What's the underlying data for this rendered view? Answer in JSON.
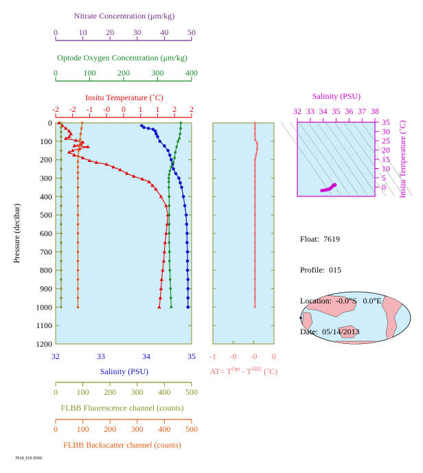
{
  "colors": {
    "panel_bg": "#cdeefa",
    "nitrate": "#7b2d8e",
    "oxygen": "#1a8a2a",
    "temperature": "#e01010",
    "salinity": "#1010c8",
    "fluorescence": "#8e8e2a",
    "backscatter": "#e0601a",
    "delta": "#f07070",
    "ts": "#cc00cc"
  },
  "info": {
    "float": "Float:  7619",
    "profile": "Profile:  015",
    "location": "Location:  -0.0°S   0.0°E",
    "date": "Date:  05/14/2013"
  },
  "footer_id": "7619_015.0000",
  "chart_data": [
    {
      "type": "line",
      "panel": "profile",
      "ylabel": "Pressure (decibar)",
      "ylim": [
        1200,
        0
      ],
      "yticks": [
        0,
        100,
        200,
        300,
        400,
        500,
        600,
        700,
        800,
        900,
        1000,
        1100,
        1200
      ],
      "axes": [
        {
          "key": "nitrate",
          "label": "Nitrate Concentration (μm/kg)",
          "lim": [
            0,
            50
          ],
          "ticks": [
            "0",
            "10",
            "20",
            "30",
            "40",
            "50"
          ],
          "position": "top-1"
        },
        {
          "key": "oxygen",
          "label": "Optode Oxygen Concentration (μm/kg)",
          "lim": [
            0,
            400
          ],
          "ticks": [
            "0",
            "100",
            "200",
            "300",
            "400"
          ],
          "position": "top-2"
        },
        {
          "key": "temperature",
          "label": "Insitu Temperature (˚C)",
          "lim": [
            -2,
            2
          ],
          "ticks": [
            "-2",
            "-2",
            "-1",
            "-0",
            "0",
            "1",
            "1",
            "2",
            "2"
          ],
          "position": "top-3"
        },
        {
          "key": "salinity",
          "label": "Salinity (PSU)",
          "lim": [
            32,
            35
          ],
          "ticks": [
            "32",
            "33",
            "34",
            "35"
          ],
          "position": "bottom-1"
        },
        {
          "key": "fluorescence",
          "label": "FLBB Fluorescence channel (counts)",
          "lim": [
            0,
            500
          ],
          "ticks": [
            "0",
            "100",
            "200",
            "300",
            "400",
            "500"
          ],
          "position": "bottom-2"
        },
        {
          "key": "backscatter",
          "label": "FLBB Backscatter channel (counts)",
          "lim": [
            0,
            500
          ],
          "ticks": [
            "0",
            "100",
            "200",
            "300",
            "400",
            "500"
          ],
          "position": "bottom-3"
        }
      ],
      "series": [
        {
          "key": "temperature",
          "marker": "triangle",
          "points": [
            [
              -1.9,
              0
            ],
            [
              -1.8,
              15
            ],
            [
              -1.7,
              30
            ],
            [
              -1.6,
              45
            ],
            [
              -1.55,
              60
            ],
            [
              -1.6,
              75
            ],
            [
              -1.7,
              85
            ],
            [
              -1.4,
              95
            ],
            [
              -1.2,
              105
            ],
            [
              -1.25,
              115
            ],
            [
              -1.45,
              125
            ],
            [
              -1.05,
              130
            ],
            [
              -1.3,
              140
            ],
            [
              -1.5,
              150
            ],
            [
              -1.6,
              160
            ],
            [
              -1.45,
              175
            ],
            [
              -1.2,
              190
            ],
            [
              -1.0,
              205
            ],
            [
              -0.8,
              215
            ],
            [
              -0.5,
              225
            ],
            [
              -0.3,
              240
            ],
            [
              -0.1,
              255
            ],
            [
              0.1,
              275
            ],
            [
              0.3,
              290
            ],
            [
              0.55,
              305
            ],
            [
              0.75,
              320
            ],
            [
              0.85,
              340
            ],
            [
              0.95,
              360
            ],
            [
              1.1,
              400
            ],
            [
              1.25,
              450
            ],
            [
              1.3,
              500
            ],
            [
              1.28,
              550
            ],
            [
              1.25,
              600
            ],
            [
              1.22,
              650
            ],
            [
              1.2,
              700
            ],
            [
              1.18,
              750
            ],
            [
              1.15,
              800
            ],
            [
              1.12,
              850
            ],
            [
              1.1,
              900
            ],
            [
              1.08,
              950
            ],
            [
              1.05,
              1000
            ]
          ]
        },
        {
          "key": "salinity",
          "points": [
            [
              33.9,
              15
            ],
            [
              33.95,
              25
            ],
            [
              34.05,
              30
            ],
            [
              34.15,
              35
            ],
            [
              34.2,
              45
            ],
            [
              34.22,
              60
            ],
            [
              34.25,
              75
            ],
            [
              34.3,
              100
            ],
            [
              34.4,
              125
            ],
            [
              34.48,
              150
            ],
            [
              34.52,
              175
            ],
            [
              34.55,
              200
            ],
            [
              34.58,
              225
            ],
            [
              34.6,
              250
            ],
            [
              34.65,
              275
            ],
            [
              34.72,
              300
            ],
            [
              34.75,
              325
            ],
            [
              34.78,
              350
            ],
            [
              34.82,
              400
            ],
            [
              34.85,
              450
            ],
            [
              34.88,
              500
            ],
            [
              34.89,
              550
            ],
            [
              34.9,
              600
            ],
            [
              34.9,
              650
            ],
            [
              34.91,
              700
            ],
            [
              34.91,
              750
            ],
            [
              34.91,
              800
            ],
            [
              34.92,
              850
            ],
            [
              34.92,
              900
            ],
            [
              34.92,
              950
            ],
            [
              34.92,
              1000
            ]
          ]
        },
        {
          "key": "oxygen",
          "points": [
            [
              368,
              0
            ],
            [
              368,
              30
            ],
            [
              366,
              60
            ],
            [
              364,
              85
            ],
            [
              360,
              100
            ],
            [
              356,
              130
            ],
            [
              352,
              160
            ],
            [
              350,
              190
            ],
            [
              346,
              215
            ],
            [
              340,
              240
            ],
            [
              336,
              260
            ],
            [
              334,
              280
            ],
            [
              333,
              300
            ],
            [
              333,
              320
            ],
            [
              333,
              350
            ],
            [
              334,
              400
            ],
            [
              334,
              450
            ],
            [
              334,
              500
            ],
            [
              334,
              550
            ],
            [
              334,
              600
            ],
            [
              334,
              650
            ],
            [
              335,
              700
            ],
            [
              335,
              750
            ],
            [
              336,
              800
            ],
            [
              337,
              850
            ],
            [
              338,
              900
            ],
            [
              339,
              950
            ],
            [
              340,
              1000
            ]
          ]
        },
        {
          "key": "fluorescence",
          "points": [
            [
              20,
              0
            ],
            [
              20,
              25
            ],
            [
              20,
              50
            ],
            [
              20,
              75
            ],
            [
              20,
              100
            ],
            [
              20,
              150
            ],
            [
              20,
              200
            ],
            [
              20,
              250
            ],
            [
              20,
              300
            ],
            [
              20,
              350
            ],
            [
              20,
              400
            ],
            [
              20,
              450
            ],
            [
              20,
              500
            ],
            [
              20,
              550
            ],
            [
              20,
              600
            ],
            [
              20,
              650
            ],
            [
              20,
              700
            ],
            [
              20,
              750
            ],
            [
              20,
              800
            ],
            [
              20,
              850
            ],
            [
              20,
              900
            ],
            [
              20,
              950
            ],
            [
              20,
              1000
            ]
          ]
        },
        {
          "key": "backscatter",
          "points": [
            [
              98,
              0
            ],
            [
              95,
              30
            ],
            [
              92,
              60
            ],
            [
              90,
              90
            ],
            [
              88,
              120
            ],
            [
              85,
              150
            ],
            [
              83,
              180
            ],
            [
              82,
              210
            ],
            [
              82,
              240
            ],
            [
              82,
              270
            ],
            [
              82,
              300
            ],
            [
              82,
              350
            ],
            [
              82,
              400
            ],
            [
              82,
              450
            ],
            [
              82,
              500
            ],
            [
              82,
              550
            ],
            [
              82,
              600
            ],
            [
              82,
              650
            ],
            [
              82,
              700
            ],
            [
              82,
              750
            ],
            [
              82,
              800
            ],
            [
              82,
              850
            ],
            [
              82,
              900
            ],
            [
              82,
              950
            ],
            [
              82,
              1000
            ]
          ]
        }
      ]
    },
    {
      "type": "line",
      "panel": "delta",
      "xlabel": "AT= T",
      "xlabel_sup1": "Opt",
      "xlabel_mid": " - T",
      "xlabel_sup2": "SBE",
      "xlabel_tail": " (˚C)",
      "xlim": [
        -1,
        0.1
      ],
      "xticks": [
        "-1",
        "-0",
        "-0",
        "0"
      ],
      "ylim": [
        1200,
        0
      ],
      "series": [
        {
          "key": "delta",
          "points": [
            [
              0,
              0
            ],
            [
              0,
              30
            ],
            [
              0,
              60
            ],
            [
              0,
              90
            ],
            [
              0.01,
              110
            ],
            [
              0.01,
              140
            ],
            [
              0.005,
              175
            ],
            [
              0,
              200
            ],
            [
              0,
              230
            ],
            [
              0,
              260
            ],
            [
              0,
              290
            ],
            [
              0,
              320
            ],
            [
              0,
              350
            ],
            [
              0,
              400
            ],
            [
              0,
              450
            ],
            [
              0,
              500
            ],
            [
              0,
              550
            ],
            [
              0,
              600
            ],
            [
              0,
              650
            ],
            [
              0,
              700
            ],
            [
              0,
              750
            ],
            [
              0,
              800
            ],
            [
              0,
              850
            ],
            [
              0,
              900
            ],
            [
              0,
              950
            ],
            [
              0,
              1000
            ]
          ]
        }
      ]
    },
    {
      "type": "scatter",
      "panel": "ts",
      "xlabel": "Salinity (PSU)",
      "ylabel": "Insitu Temperature (˚C)",
      "xlim": [
        32,
        38
      ],
      "xticks": [
        "32",
        "33",
        "34",
        "35",
        "36",
        "37",
        "38"
      ],
      "ylim": [
        -5,
        35
      ],
      "yticks": [
        "35",
        "30",
        "25",
        "20",
        "15",
        "10",
        "5",
        "0"
      ],
      "series": [
        {
          "key": "ts",
          "points": [
            [
              33.9,
              -1.9
            ],
            [
              34.05,
              -1.7
            ],
            [
              34.2,
              -1.6
            ],
            [
              34.3,
              -1.4
            ],
            [
              34.4,
              -1.2
            ],
            [
              34.5,
              -1.0
            ],
            [
              34.58,
              -0.6
            ],
            [
              34.65,
              -0.1
            ],
            [
              34.72,
              0.4
            ],
            [
              34.78,
              0.8
            ],
            [
              34.82,
              1.0
            ],
            [
              34.85,
              1.2
            ],
            [
              34.88,
              1.3
            ],
            [
              34.9,
              1.25
            ],
            [
              34.92,
              1.1
            ]
          ]
        }
      ]
    }
  ]
}
